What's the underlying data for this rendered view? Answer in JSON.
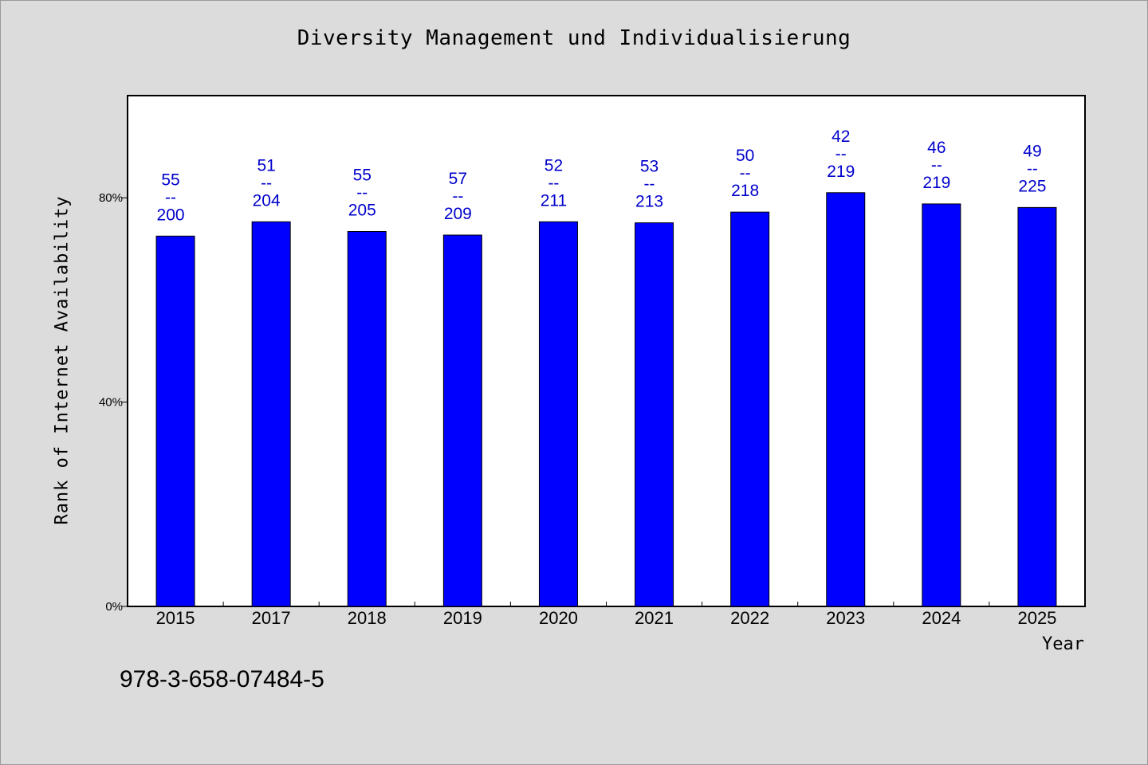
{
  "chart_data": {
    "type": "bar",
    "title": "Diversity Management und Individualisierung",
    "xlabel": "Year",
    "ylabel": "Rank of Internet Availability",
    "categories": [
      "2015",
      "2017",
      "2018",
      "2019",
      "2020",
      "2021",
      "2022",
      "2023",
      "2024",
      "2025"
    ],
    "values": [
      72.5,
      75.3,
      73.4,
      72.7,
      75.3,
      75.1,
      77.2,
      81.0,
      78.8,
      78.1
    ],
    "value_labels": [
      [
        "55",
        "--",
        "200"
      ],
      [
        "51",
        "--",
        "204"
      ],
      [
        "55",
        "--",
        "205"
      ],
      [
        "57",
        "--",
        "209"
      ],
      [
        "52",
        "--",
        "211"
      ],
      [
        "53",
        "--",
        "213"
      ],
      [
        "50",
        "--",
        "218"
      ],
      [
        "42",
        "--",
        "219"
      ],
      [
        "46",
        "--",
        "219"
      ],
      [
        "49",
        "--",
        "225"
      ]
    ],
    "yticks": [
      0,
      40,
      80
    ],
    "ytick_labels": [
      "0%",
      "40%",
      "80%"
    ],
    "ylim": [
      0,
      100
    ],
    "grid": false,
    "bar_color": "#0000ff",
    "label_color": "#0000cc"
  },
  "footer_text": "978-3-658-07484-5"
}
